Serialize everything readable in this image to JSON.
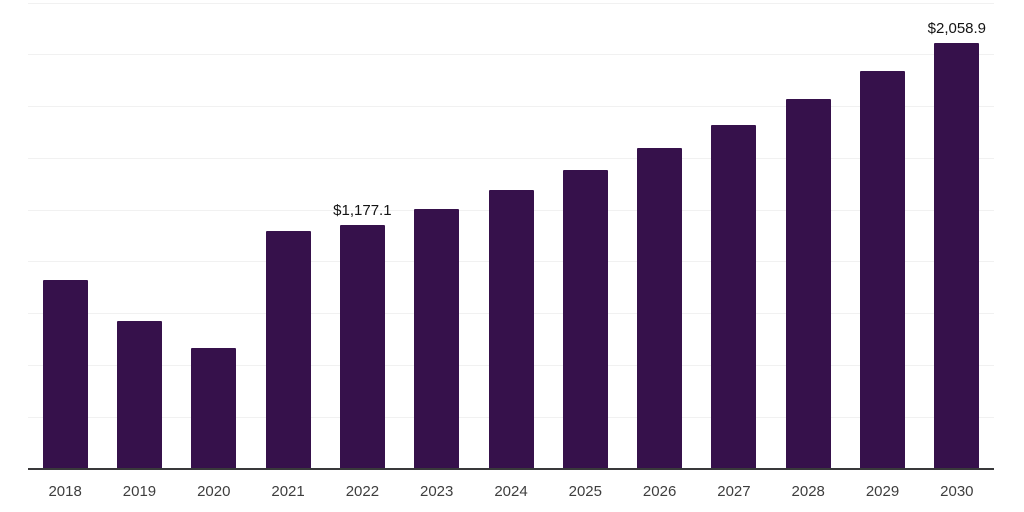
{
  "chart_data": {
    "type": "bar",
    "title": "",
    "xlabel": "",
    "ylabel": "",
    "categories": [
      "2018",
      "2019",
      "2020",
      "2021",
      "2022",
      "2023",
      "2024",
      "2025",
      "2026",
      "2027",
      "2028",
      "2029",
      "2030"
    ],
    "values": [
      912,
      716,
      584,
      1150,
      1177.1,
      1256,
      1345,
      1442,
      1548,
      1659,
      1787,
      1921,
      2058.9
    ],
    "data_labels": [
      "",
      "",
      "",
      "",
      "$1,177.1",
      "",
      "",
      "",
      "",
      "",
      "",
      "",
      "$2,058.9"
    ],
    "ylim": [
      0,
      2250
    ],
    "grid_step": 250,
    "grid_on": true,
    "y_tick_labels_visible": false,
    "legend_position": "none",
    "colors": {
      "bar": "#36114b",
      "grid": "#f1f1f1",
      "axis": "#39393b",
      "tick_label": "#3e3e3e",
      "data_label": "#141414",
      "background": "#ffffff"
    }
  }
}
